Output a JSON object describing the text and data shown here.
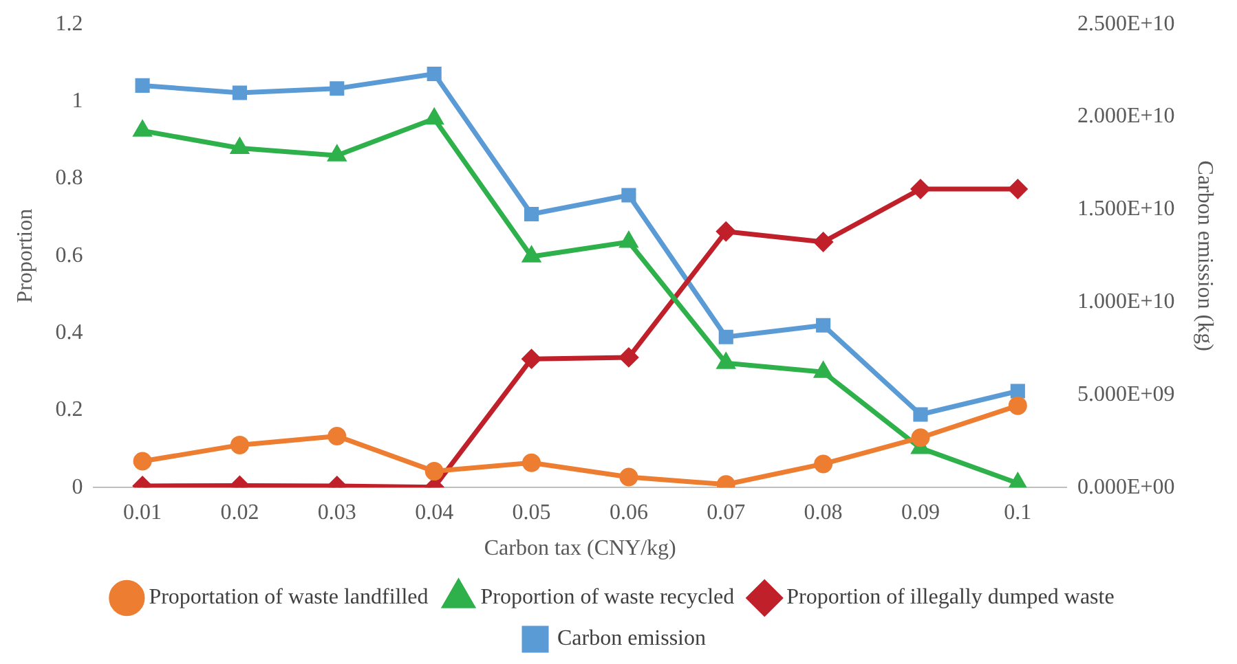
{
  "chart_data": {
    "type": "line",
    "xlabel": "Carbon tax (CNY/kg)",
    "ylabel": "Proportion",
    "y2label": "Carbon emission (kg)",
    "categories": [
      "0.01",
      "0.02",
      "0.03",
      "0.04",
      "0.05",
      "0.06",
      "0.07",
      "0.08",
      "0.09",
      "0.1"
    ],
    "series": [
      {
        "name": "Proportation of waste landfilled",
        "color": "#ed7d31",
        "marker": "circle",
        "values": [
          0.068,
          0.11,
          0.133,
          0.042,
          0.064,
          0.027,
          0.008,
          0.061,
          0.129,
          0.212
        ]
      },
      {
        "name": "Proportion of waste recycled",
        "color": "#2eb04a",
        "marker": "triangle",
        "values": [
          0.924,
          0.879,
          0.86,
          0.955,
          0.598,
          0.636,
          0.322,
          0.299,
          0.102,
          0.011
        ]
      },
      {
        "name": "Proportion of illegally dumped waste",
        "color": "#c0202a",
        "marker": "diamond",
        "values": [
          0.004,
          0.005,
          0.004,
          0.001,
          0.333,
          0.337,
          0.663,
          0.636,
          0.773,
          0.773
        ]
      },
      {
        "name": "Carbon emission",
        "color": "#5b9bd5",
        "marker": "square",
        "axis": "y2",
        "values": [
          21690000000.0,
          21300000000.0,
          21530000000.0,
          22320000000.0,
          14750000000.0,
          15770000000.0,
          8120000000.0,
          8750000000.0,
          3940000000.0,
          5200000000.0
        ]
      }
    ],
    "ylim": [
      0,
      1.2
    ],
    "yticks": [
      0,
      0.2,
      0.4,
      0.6,
      0.8,
      1,
      1.2
    ],
    "y2lim": [
      0,
      25000000000.0
    ],
    "y2ticks": [
      {
        "value": 0,
        "label": "0.000E+00"
      },
      {
        "value": 5000000000.0,
        "label": "5.000E+09"
      },
      {
        "value": 10000000000.0,
        "label": "1.000E+10"
      },
      {
        "value": 15000000000.0,
        "label": "1.500E+10"
      },
      {
        "value": 20000000000.0,
        "label": "2.000E+10"
      },
      {
        "value": 25000000000.0,
        "label": "2.500E+10"
      }
    ],
    "grid": false,
    "legend": "bottom",
    "line_style": "solid"
  }
}
